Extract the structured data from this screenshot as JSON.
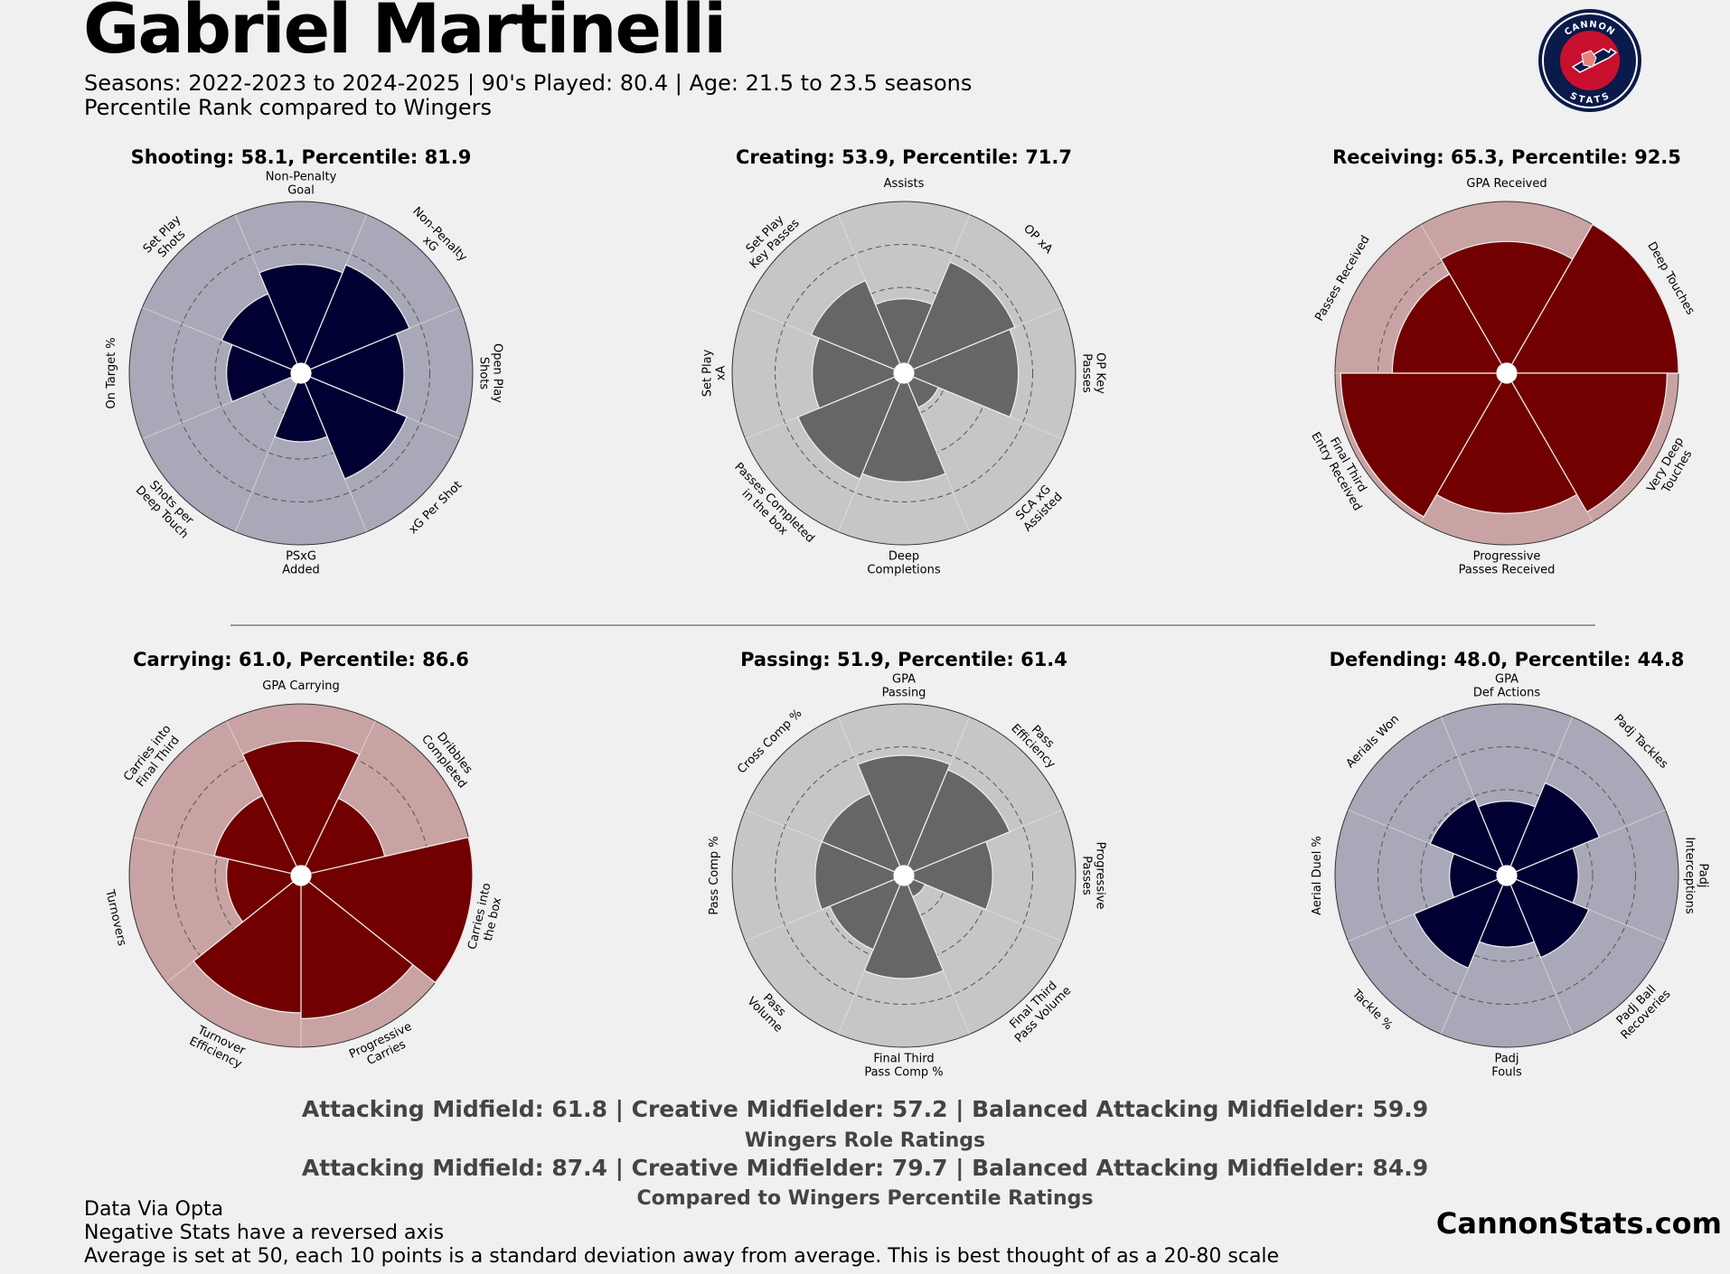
{
  "header": {
    "title": "Gabriel Martinelli",
    "subtitle_line1": "Seasons: 2022-2023 to 2024-2025 | 90's Played: 80.4 | Age: 21.5 to 23.5 seasons",
    "subtitle_line2": "Percentile Rank compared to Wingers"
  },
  "logo": {
    "text_top": "CANNON",
    "text_bottom": "STATS"
  },
  "colors": {
    "background": "#f0f0f0",
    "navy_fill": "#000033",
    "navy_bg": "#a8a8b8",
    "gray_fill": "#666666",
    "gray_bg": "#c6c6c6",
    "red_fill": "#720000",
    "red_bg": "#c9a3a3"
  },
  "chart_data": [
    {
      "type": "polar-bar",
      "title": "Shooting: 58.1, Percentile: 81.9",
      "palette": "navy",
      "categories": [
        "Non-Penalty\nGoal",
        "Non-Penalty\nxG",
        "Open Play\nShots",
        "xG Per Shot",
        "PSxG\nAdded",
        "Shots per\nDeep Touch",
        "On Target %",
        "Set Play\nShots"
      ],
      "values": [
        58,
        61,
        56,
        60,
        44,
        2,
        46,
        50
      ],
      "rlim": [
        20,
        80
      ]
    },
    {
      "type": "polar-bar",
      "title": "Creating: 53.9, Percentile: 71.7",
      "palette": "gray",
      "categories": [
        "Assists",
        "OP xA",
        "OP Key\nPasses",
        "SCA xG\nAssisted",
        "Deep\nCompletions",
        "Passes Completed\nin the box",
        "Set Play\nxA",
        "Set Play\nKey Passes"
      ],
      "values": [
        46,
        62,
        60,
        33,
        58,
        60,
        52,
        55
      ],
      "rlim": [
        20,
        80
      ]
    },
    {
      "type": "polar-bar",
      "title": "Receiving: 65.3, Percentile: 92.5",
      "palette": "red",
      "categories": [
        "GPA Received",
        "Deep Touches",
        "Very Deep\nTouches",
        "Progressive\nPasses Received",
        "Final Third\nEntry Received",
        "Passes Received"
      ],
      "values": [
        66,
        80,
        76,
        69,
        78,
        60
      ],
      "rlim": [
        20,
        80
      ]
    },
    {
      "type": "polar-bar",
      "title": "Carrying: 61.0, Percentile: 86.6",
      "palette": "red",
      "categories": [
        "GPA Carrying",
        "Dribbles\nCompleted",
        "Carries into\nthe box",
        "Progressive\nCarries",
        "Turnover\nEfficiency",
        "Turnovers",
        "Carries into\nFinal Third"
      ],
      "values": [
        67,
        50,
        80,
        70,
        68,
        46,
        51
      ],
      "rlim": [
        20,
        80
      ]
    },
    {
      "type": "polar-bar",
      "title": "Passing: 51.9, Percentile: 61.4",
      "palette": "gray",
      "categories": [
        "GPA\nPassing",
        "Pass\nEfficiency",
        "Progressive\nPasses",
        "Final Third\nPass Volume",
        "Final Third\nPass Comp %",
        "Pass\nVolume",
        "Pass Comp %",
        "Cross Comp %"
      ],
      "values": [
        62,
        60,
        51,
        28,
        56,
        48,
        51,
        51
      ],
      "rlim": [
        20,
        80
      ]
    },
    {
      "type": "polar-bar",
      "title": "Defending: 48.0, Percentile: 44.8",
      "palette": "navy",
      "categories": [
        "GPA\nDef Actions",
        "Padj Tackles",
        "Padj\nInterceptions",
        "Padj Ball\nRecoveries",
        "Padj\nFouls",
        "Tackle %",
        "Aerial Duel %",
        "Aerials Won"
      ],
      "values": [
        46,
        55,
        45,
        51,
        45,
        55,
        40,
        49
      ],
      "rlim": [
        20,
        80
      ]
    }
  ],
  "ratings": {
    "raw_line": "Attacking Midfield: 61.8 | Creative Midfielder: 57.2 | Balanced Attacking Midfielder: 59.9",
    "raw_caption": "Wingers Role Ratings",
    "pct_line": "Attacking Midfield: 87.4 | Creative Midfielder: 79.7 | Balanced Attacking Midfielder: 84.9",
    "pct_caption": "Compared to Wingers Percentile Ratings"
  },
  "footer": {
    "line1": "Data Via Opta",
    "line2": "Negative Stats have a reversed axis",
    "line3": "Average is set at 50, each 10 points is a standard deviation away from average. This is best thought of as a 20-80 scale",
    "brand": "CannonStats.com"
  }
}
